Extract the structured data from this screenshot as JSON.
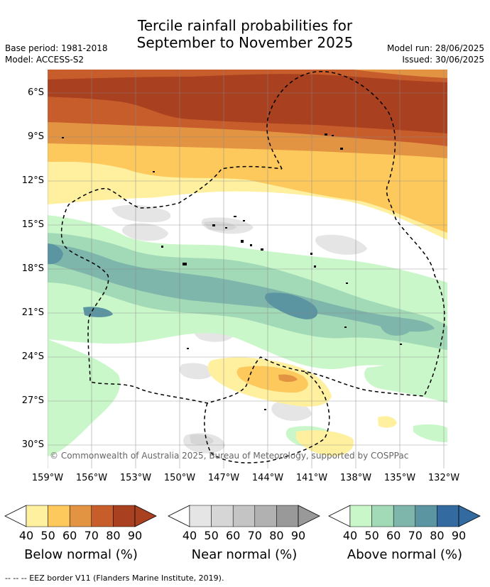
{
  "header": {
    "title_line1": "Tercile rainfall probabilities for",
    "title_line2": "September to November 2025",
    "base_period": "Base period: 1981-2018",
    "model": "Model: ACCESS-S2",
    "model_run": "Model run: 28/06/2025",
    "issued": "Issued: 30/06/2025"
  },
  "map": {
    "lat_labels": [
      "6°S",
      "9°S",
      "12°S",
      "15°S",
      "18°S",
      "21°S",
      "24°S",
      "27°S",
      "30°S"
    ],
    "lon_labels": [
      "159°W",
      "156°W",
      "153°W",
      "150°W",
      "147°W",
      "144°W",
      "141°W",
      "138°W",
      "135°W",
      "132°W"
    ],
    "copyright": "© Commonwealth of Australia 2025, Bureau of Meteorology, supported by COSPPac",
    "colors": {
      "below": [
        "#fff0a0",
        "#fdc95c",
        "#e39443",
        "#c85d2c",
        "#a9401f"
      ],
      "near": [
        "#e5e5e5",
        "#d6d6d6",
        "#c4c4c4",
        "#b1b1b1",
        "#999999"
      ],
      "above": [
        "#c9f7c9",
        "#a2d9b6",
        "#7eb6ac",
        "#5c95a2",
        "#336aa0"
      ]
    }
  },
  "legend": {
    "ticks": [
      "40",
      "50",
      "60",
      "70",
      "80",
      "90"
    ],
    "below_label": "Below normal (%)",
    "near_label": "Near normal (%)",
    "above_label": "Above normal (%)"
  },
  "footer": "--  --  -- EEZ border V11 (Flanders Marine Institute, 2019)."
}
